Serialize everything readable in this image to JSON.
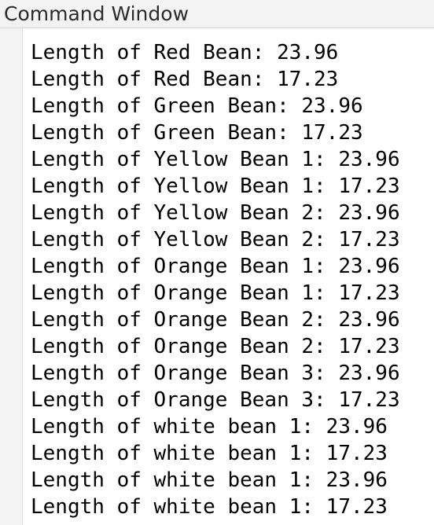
{
  "window": {
    "title": "Command Window"
  },
  "output_lines": [
    "Length of Red Bean: 23.96",
    "Length of Red Bean: 17.23",
    "Length of Green Bean: 23.96",
    "Length of Green Bean: 17.23",
    "Length of Yellow Bean 1: 23.96",
    "Length of Yellow Bean 1: 17.23",
    "Length of Yellow Bean 2: 23.96",
    "Length of Yellow Bean 2: 17.23",
    "Length of Orange Bean 1: 23.96",
    "Length of Orange Bean 1: 17.23",
    "Length of Orange Bean 2: 23.96",
    "Length of Orange Bean 2: 17.23",
    "Length of Orange Bean 3: 23.96",
    "Length of Orange Bean 3: 17.23",
    "Length of white bean 1: 23.96",
    "Length of white bean 1: 17.23",
    "Length of white bean 1: 23.96",
    "Length of white bean 1: 17.23"
  ]
}
